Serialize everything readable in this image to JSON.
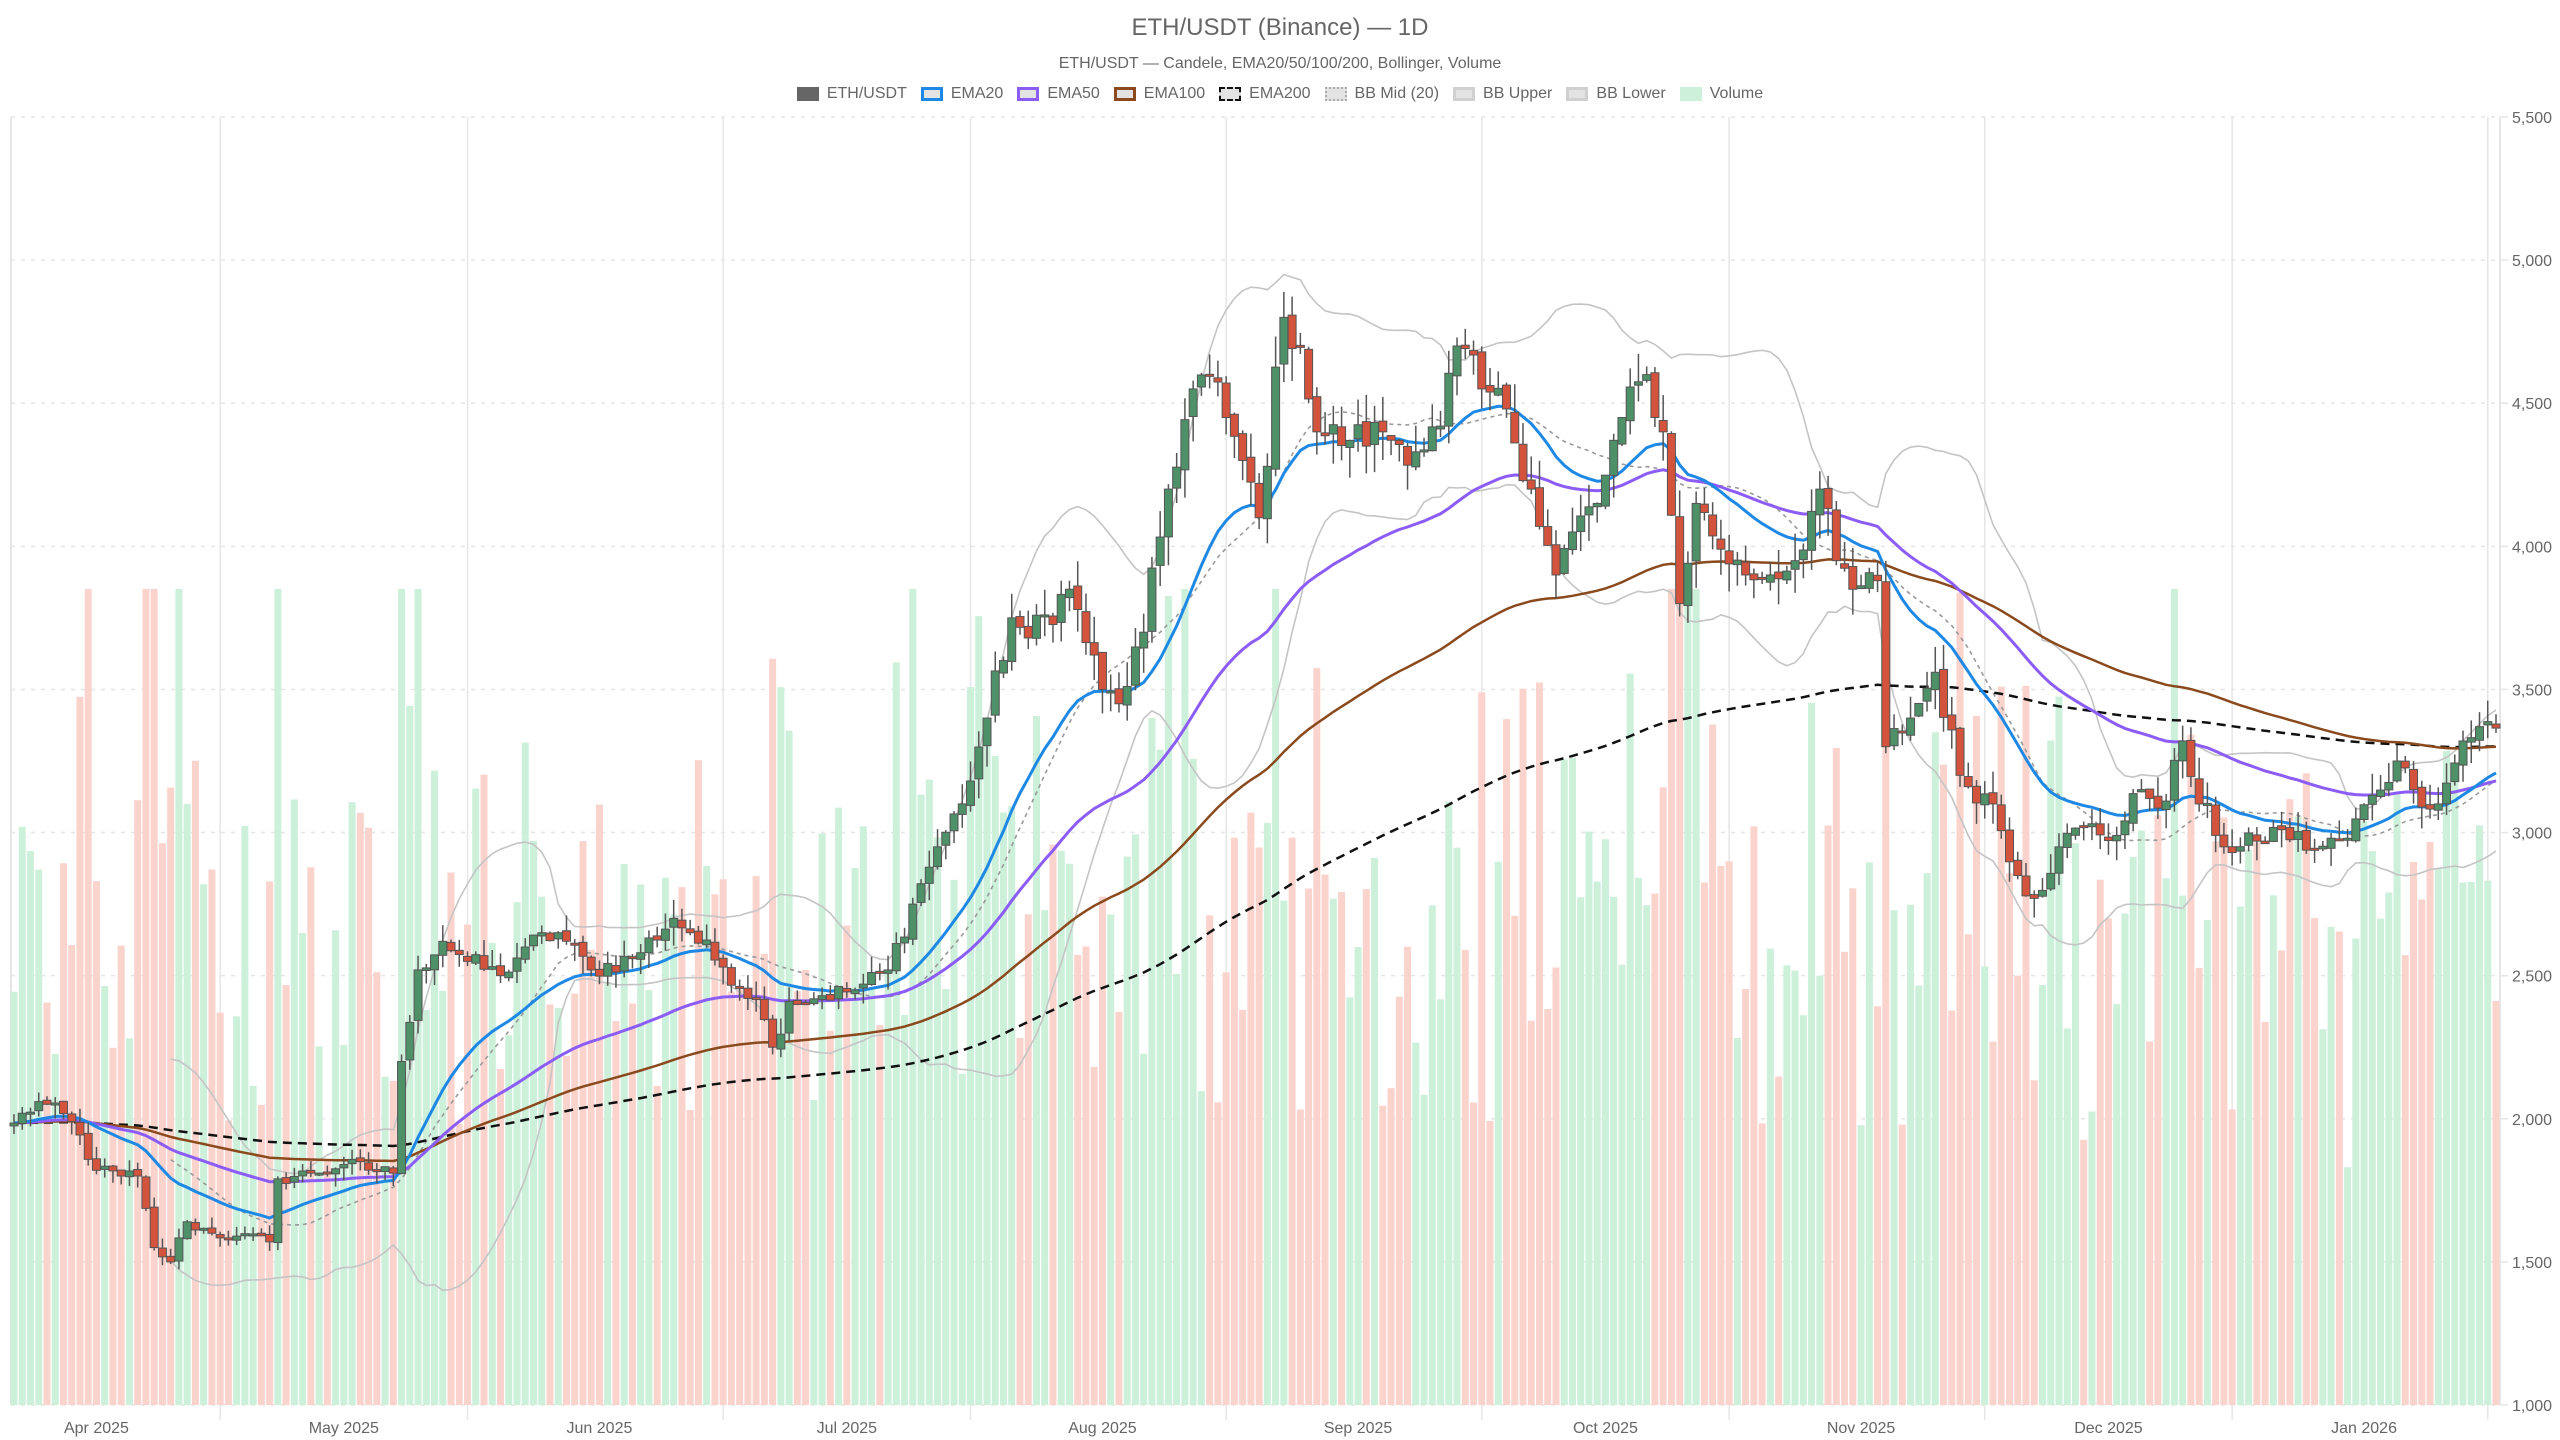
{
  "title": "ETH/USDT (Binance) — 1D",
  "subtitle": "ETH/USDT — Candele, EMA20/50/100/200, Bollinger, Volume",
  "legend": [
    {
      "label": "ETH/USDT",
      "style": "solid",
      "fill": "#666666",
      "border": "#666666"
    },
    {
      "label": "EMA20",
      "style": "line",
      "fill": "#e3e3e3",
      "border": "#1e88e5"
    },
    {
      "label": "EMA50",
      "style": "line",
      "fill": "#e3e3e3",
      "border": "#8b5cf6"
    },
    {
      "label": "EMA100",
      "style": "line",
      "fill": "#e3e3e3",
      "border": "#8b4a1e"
    },
    {
      "label": "EMA200",
      "style": "dashed",
      "fill": "#e3e3e3",
      "border": "#111111"
    },
    {
      "label": "BB Mid (20)",
      "style": "dotted",
      "fill": "#e3e3e3",
      "border": "#aaaaaa"
    },
    {
      "label": "BB Upper",
      "style": "line",
      "fill": "#e3e3e3",
      "border": "#d0d0d0"
    },
    {
      "label": "BB Lower",
      "style": "line",
      "fill": "#e3e3e3",
      "border": "#d0d0d0"
    },
    {
      "label": "Volume",
      "style": "solid",
      "fill": "#ccf0da",
      "border": "#ccf0da"
    }
  ],
  "colors": {
    "up": "#4e9068",
    "down": "#d4533d",
    "wick": "#555555",
    "ema20": "#1e88e5",
    "ema50": "#8b5cf6",
    "ema100": "#8b4a1e",
    "ema200": "#111111",
    "bb_mid": "#999999",
    "bb_band": "#c4c4c4",
    "vol_up": "#ccf0da",
    "vol_down": "#fbd3cd",
    "grid": "#e6e6e6"
  },
  "chart_data": {
    "type": "candlestick",
    "title": "ETH/USDT (Binance) — 1D",
    "subtitle": "ETH/USDT — Candele, EMA20/50/100/200, Bollinger, Volume",
    "xlabel": "",
    "ylabel": "",
    "ylim": [
      1000,
      5500
    ],
    "y_ticks": [
      "1,000",
      "1,500",
      "2,000",
      "2,500",
      "3,000",
      "3,500",
      "4,000",
      "4,500",
      "5,000",
      "5,500"
    ],
    "y_tick_values": [
      1000,
      1500,
      2000,
      2500,
      3000,
      3500,
      4000,
      4500,
      5000,
      5500
    ],
    "x_ticks": [
      "Apr 2025",
      "May 2025",
      "Jun 2025",
      "Jul 2025",
      "Aug 2025",
      "Sep 2025",
      "Oct 2025",
      "Nov 2025",
      "Dec 2025",
      "Jan 2026"
    ],
    "grid": true,
    "legend_position": "top",
    "date_range": [
      "2025-03-22",
      "2026-01-17"
    ],
    "close_anchors": [
      [
        "2025-03-22",
        1985
      ],
      [
        "2025-03-25",
        2060
      ],
      [
        "2025-03-29",
        1990
      ],
      [
        "2025-04-01",
        1820
      ],
      [
        "2025-04-04",
        1800
      ],
      [
        "2025-04-06",
        1800
      ],
      [
        "2025-04-08",
        1550
      ],
      [
        "2025-04-10",
        1500
      ],
      [
        "2025-04-12",
        1640
      ],
      [
        "2025-04-15",
        1600
      ],
      [
        "2025-04-18",
        1590
      ],
      [
        "2025-04-22",
        1570
      ],
      [
        "2025-04-23",
        1790
      ],
      [
        "2025-04-27",
        1810
      ],
      [
        "2025-05-01",
        1840
      ],
      [
        "2025-05-07",
        1810
      ],
      [
        "2025-05-08",
        2200
      ],
      [
        "2025-05-10",
        2520
      ],
      [
        "2025-05-13",
        2620
      ],
      [
        "2025-05-16",
        2550
      ],
      [
        "2025-05-20",
        2500
      ],
      [
        "2025-05-23",
        2600
      ],
      [
        "2025-05-27",
        2650
      ],
      [
        "2025-05-31",
        2520
      ],
      [
        "2025-06-05",
        2560
      ],
      [
        "2025-06-10",
        2700
      ],
      [
        "2025-06-12",
        2650
      ],
      [
        "2025-06-16",
        2530
      ],
      [
        "2025-06-20",
        2420
      ],
      [
        "2025-06-22",
        2250
      ],
      [
        "2025-06-24",
        2410
      ],
      [
        "2025-06-28",
        2430
      ],
      [
        "2025-07-02",
        2450
      ],
      [
        "2025-07-06",
        2520
      ],
      [
        "2025-07-09",
        2750
      ],
      [
        "2025-07-12",
        2950
      ],
      [
        "2025-07-15",
        3100
      ],
      [
        "2025-07-18",
        3400
      ],
      [
        "2025-07-21",
        3750
      ],
      [
        "2025-07-23",
        3680
      ],
      [
        "2025-07-28",
        3850
      ],
      [
        "2025-08-01",
        3500
      ],
      [
        "2025-08-03",
        3450
      ],
      [
        "2025-08-06",
        3700
      ],
      [
        "2025-08-09",
        4200
      ],
      [
        "2025-08-12",
        4550
      ],
      [
        "2025-08-14",
        4600
      ],
      [
        "2025-08-16",
        4450
      ],
      [
        "2025-08-18",
        4300
      ],
      [
        "2025-08-20",
        4100
      ],
      [
        "2025-08-23",
        4800
      ],
      [
        "2025-08-25",
        4700
      ],
      [
        "2025-08-27",
        4400
      ],
      [
        "2025-08-31",
        4370
      ],
      [
        "2025-09-04",
        4400
      ],
      [
        "2025-09-08",
        4330
      ],
      [
        "2025-09-11",
        4420
      ],
      [
        "2025-09-13",
        4700
      ],
      [
        "2025-09-16",
        4550
      ],
      [
        "2025-09-19",
        4480
      ],
      [
        "2025-09-22",
        4200
      ],
      [
        "2025-09-25",
        3900
      ],
      [
        "2025-09-27",
        4050
      ],
      [
        "2025-09-30",
        4150
      ],
      [
        "2025-10-03",
        4450
      ],
      [
        "2025-10-06",
        4600
      ],
      [
        "2025-10-08",
        4400
      ],
      [
        "2025-10-10",
        3800
      ],
      [
        "2025-10-12",
        4150
      ],
      [
        "2025-10-15",
        3990
      ],
      [
        "2025-10-18",
        3900
      ],
      [
        "2025-10-21",
        3900
      ],
      [
        "2025-10-24",
        3950
      ],
      [
        "2025-10-27",
        4200
      ],
      [
        "2025-10-29",
        3950
      ],
      [
        "2025-10-31",
        3850
      ],
      [
        "2025-11-03",
        3880
      ],
      [
        "2025-11-04",
        3300
      ],
      [
        "2025-11-07",
        3400
      ],
      [
        "2025-11-10",
        3560
      ],
      [
        "2025-11-13",
        3200
      ],
      [
        "2025-11-17",
        3100
      ],
      [
        "2025-11-20",
        2850
      ],
      [
        "2025-11-22",
        2770
      ],
      [
        "2025-11-25",
        2950
      ],
      [
        "2025-11-28",
        3020
      ],
      [
        "2025-12-02",
        2990
      ],
      [
        "2025-12-05",
        3150
      ],
      [
        "2025-12-08",
        3110
      ],
      [
        "2025-12-10",
        3320
      ],
      [
        "2025-12-12",
        3100
      ],
      [
        "2025-12-16",
        2930
      ],
      [
        "2025-12-19",
        2970
      ],
      [
        "2025-12-22",
        3010
      ],
      [
        "2025-12-26",
        2940
      ],
      [
        "2025-12-30",
        2980
      ],
      [
        "2026-01-02",
        3130
      ],
      [
        "2026-01-05",
        3250
      ],
      [
        "2026-01-07",
        3150
      ],
      [
        "2026-01-10",
        3100
      ],
      [
        "2026-01-13",
        3320
      ],
      [
        "2026-01-15",
        3370
      ],
      [
        "2026-01-17",
        3365
      ]
    ],
    "series": [
      {
        "name": "ETH/USDT",
        "kind": "candlestick"
      },
      {
        "name": "EMA20",
        "kind": "line",
        "last": 3150
      },
      {
        "name": "EMA50",
        "kind": "line",
        "last": 3125
      },
      {
        "name": "EMA100",
        "kind": "line",
        "last": 3290
      },
      {
        "name": "EMA200",
        "kind": "line",
        "last": 3300
      },
      {
        "name": "BB Mid (20)",
        "kind": "line",
        "last": 3125
      },
      {
        "name": "BB Upper",
        "kind": "line",
        "last": 3370
      },
      {
        "name": "BB Lower",
        "kind": "line",
        "last": 2860
      },
      {
        "name": "Volume",
        "kind": "bar",
        "axis": "overlay-bottom"
      }
    ],
    "notable_points": {
      "all_time_high_wick": {
        "date": "2025-08-24",
        "value": 4950
      },
      "bb_upper_peak": {
        "date": "2025-08-23",
        "value": 5000
      },
      "largest_volume": {
        "date": "2025-04-07",
        "direction": "down"
      },
      "oct_10_crash_low": {
        "date": "2025-10-10",
        "value": 3450
      },
      "nov_low": {
        "date": "2025-11-21",
        "value": 2620
      }
    }
  }
}
